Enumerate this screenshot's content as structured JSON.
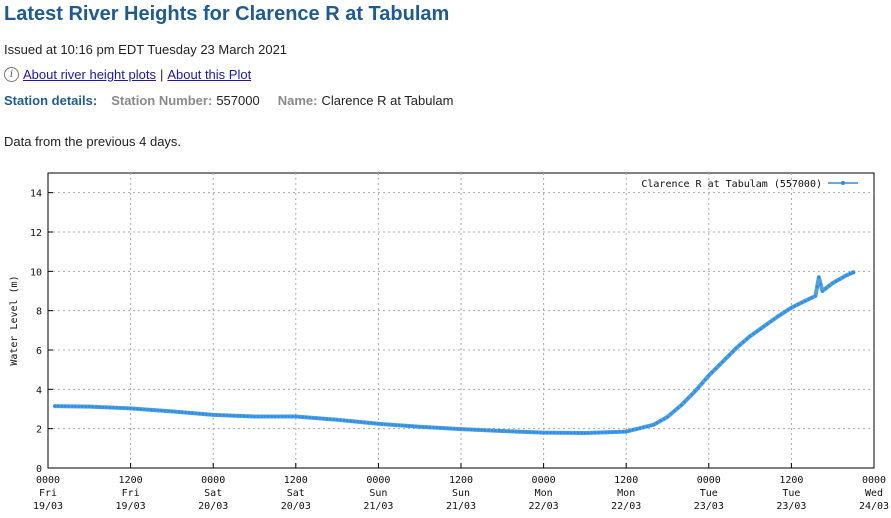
{
  "header": {
    "title": "Latest River Heights for Clarence R at Tabulam",
    "issued": "Issued at 10:16 pm EDT Tuesday 23 March 2021"
  },
  "links": {
    "about_plots": "About river height plots",
    "separator": "|",
    "about_this": "About this Plot"
  },
  "station": {
    "section_label": "Station details:",
    "number_label": "Station Number:",
    "number": "557000",
    "name_label": "Name:",
    "name": "Clarence R at Tabulam"
  },
  "note": "Data from the previous 4 days.",
  "colors": {
    "title": "#1f5b93",
    "series": "#2f8ee0",
    "grid": "#aaaaaa"
  },
  "chart_data": {
    "type": "line",
    "title": "",
    "xlabel": "",
    "ylabel": "Water Level (m)",
    "ylim": [
      0,
      15
    ],
    "yticks": [
      0,
      2,
      4,
      6,
      8,
      10,
      12,
      14
    ],
    "xlim": [
      0,
      120
    ],
    "x_unit": "hours from 0000 Fri 19/03",
    "xticks": [
      {
        "time": "0000",
        "day": "Fri",
        "date": "19/03"
      },
      {
        "time": "1200",
        "day": "Fri",
        "date": "19/03"
      },
      {
        "time": "0000",
        "day": "Sat",
        "date": "20/03"
      },
      {
        "time": "1200",
        "day": "Sat",
        "date": "20/03"
      },
      {
        "time": "0000",
        "day": "Sun",
        "date": "21/03"
      },
      {
        "time": "1200",
        "day": "Sun",
        "date": "21/03"
      },
      {
        "time": "0000",
        "day": "Mon",
        "date": "22/03"
      },
      {
        "time": "1200",
        "day": "Mon",
        "date": "22/03"
      },
      {
        "time": "0000",
        "day": "Tue",
        "date": "23/03"
      },
      {
        "time": "1200",
        "day": "Tue",
        "date": "23/03"
      },
      {
        "time": "0000",
        "day": "Wed",
        "date": "24/03"
      }
    ],
    "grid": true,
    "legend_position": "top-right",
    "series": [
      {
        "name": "Clarence R at Tabulam (557000)",
        "points": [
          [
            1,
            3.15
          ],
          [
            6,
            3.12
          ],
          [
            12,
            3.03
          ],
          [
            18,
            2.88
          ],
          [
            24,
            2.7
          ],
          [
            30,
            2.62
          ],
          [
            36,
            2.62
          ],
          [
            42,
            2.45
          ],
          [
            48,
            2.25
          ],
          [
            54,
            2.1
          ],
          [
            60,
            1.98
          ],
          [
            66,
            1.88
          ],
          [
            72,
            1.8
          ],
          [
            78,
            1.78
          ],
          [
            84,
            1.85
          ],
          [
            88,
            2.2
          ],
          [
            90,
            2.6
          ],
          [
            92,
            3.2
          ],
          [
            94,
            3.9
          ],
          [
            96,
            4.7
          ],
          [
            98,
            5.4
          ],
          [
            100,
            6.1
          ],
          [
            102,
            6.7
          ],
          [
            104,
            7.2
          ],
          [
            106,
            7.7
          ],
          [
            108,
            8.15
          ],
          [
            110,
            8.5
          ],
          [
            111.5,
            8.75
          ],
          [
            112,
            9.7
          ],
          [
            112.5,
            9.0
          ],
          [
            114,
            9.4
          ],
          [
            116,
            9.8
          ],
          [
            117,
            9.95
          ]
        ]
      }
    ]
  }
}
